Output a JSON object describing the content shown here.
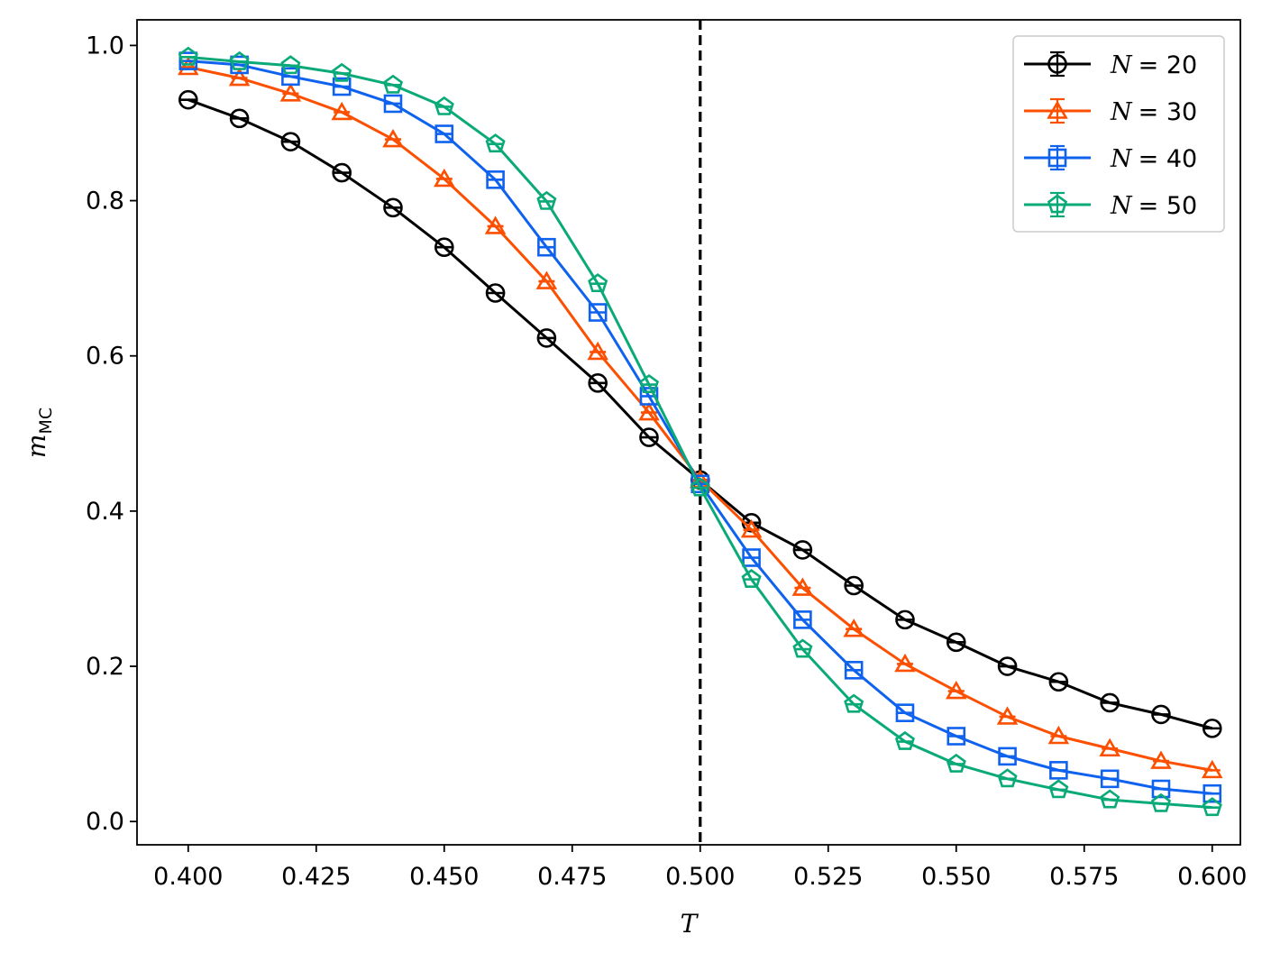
{
  "chart_data": {
    "type": "line",
    "xlabel": "T",
    "ylabel": "m",
    "ylabel_sub": "MC",
    "xlim": [
      0.39,
      0.6055
    ],
    "ylim": [
      -0.03,
      1.033
    ],
    "x_ticks": [
      0.4,
      0.425,
      0.45,
      0.475,
      0.5,
      0.525,
      0.55,
      0.575,
      0.6
    ],
    "x_tick_labels": [
      "0.400",
      "0.425",
      "0.450",
      "0.475",
      "0.500",
      "0.525",
      "0.550",
      "0.575",
      "0.600"
    ],
    "y_ticks": [
      0.0,
      0.2,
      0.4,
      0.6,
      0.8,
      1.0
    ],
    "y_tick_labels": [
      "0.0",
      "0.2",
      "0.4",
      "0.6",
      "0.8",
      "1.0"
    ],
    "vline": {
      "x": 0.5,
      "style": "dashed",
      "color": "#000000"
    },
    "legend_position": "top-right",
    "grid": false,
    "x": [
      0.4,
      0.41,
      0.42,
      0.43,
      0.44,
      0.45,
      0.46,
      0.47,
      0.48,
      0.49,
      0.5,
      0.51,
      0.52,
      0.53,
      0.54,
      0.55,
      0.56,
      0.57,
      0.58,
      0.59,
      0.6
    ],
    "series": [
      {
        "name": "N = 20",
        "legend_var": "N",
        "legend_val": "= 20",
        "color": "#000000",
        "marker": "circle",
        "values": [
          0.93,
          0.906,
          0.876,
          0.836,
          0.791,
          0.74,
          0.681,
          0.623,
          0.565,
          0.495,
          0.44,
          0.385,
          0.35,
          0.304,
          0.26,
          0.231,
          0.2,
          0.18,
          0.153,
          0.138,
          0.12
        ]
      },
      {
        "name": "N = 30",
        "legend_var": "N",
        "legend_val": "= 30",
        "color": "#fc4f00",
        "marker": "triangle",
        "values": [
          0.972,
          0.958,
          0.938,
          0.914,
          0.879,
          0.828,
          0.767,
          0.696,
          0.605,
          0.527,
          0.44,
          0.376,
          0.301,
          0.248,
          0.203,
          0.168,
          0.135,
          0.11,
          0.094,
          0.078,
          0.066
        ]
      },
      {
        "name": "N = 40",
        "legend_var": "N",
        "legend_val": "= 40",
        "color": "#0e62ee",
        "marker": "square",
        "values": [
          0.98,
          0.975,
          0.96,
          0.947,
          0.925,
          0.886,
          0.827,
          0.74,
          0.656,
          0.548,
          0.435,
          0.34,
          0.26,
          0.195,
          0.14,
          0.11,
          0.084,
          0.066,
          0.055,
          0.042,
          0.036
        ]
      },
      {
        "name": "N = 50",
        "legend_var": "N",
        "legend_val": "= 50",
        "color": "#0aaa78",
        "marker": "pentagon",
        "values": [
          0.985,
          0.979,
          0.974,
          0.964,
          0.949,
          0.921,
          0.873,
          0.799,
          0.693,
          0.563,
          0.43,
          0.312,
          0.222,
          0.151,
          0.103,
          0.074,
          0.055,
          0.041,
          0.028,
          0.023,
          0.018
        ]
      }
    ]
  }
}
